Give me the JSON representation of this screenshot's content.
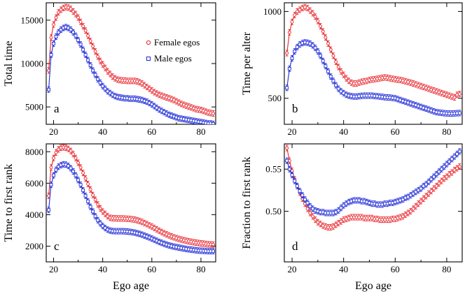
{
  "chart_data": [
    {
      "type": "line",
      "panel_label": "a",
      "ylabel": "Total time",
      "xlabel": "",
      "xlim": [
        17,
        86
      ],
      "ylim": [
        3000,
        17000
      ],
      "xticks": [
        20,
        40,
        60,
        80
      ],
      "yticks": [
        5000,
        10000,
        15000
      ],
      "xtick_labels": [
        "20",
        "40",
        "60",
        "80"
      ],
      "ytick_labels": [
        "5000",
        "10000",
        "15000"
      ],
      "legend": {
        "position": "right",
        "entries": [
          "Female egos",
          "Male egos"
        ]
      },
      "x": [
        18,
        19,
        20,
        21,
        22,
        23,
        24,
        25,
        26,
        27,
        28,
        29,
        30,
        31,
        32,
        33,
        34,
        35,
        36,
        37,
        38,
        39,
        40,
        41,
        42,
        43,
        44,
        45,
        46,
        47,
        48,
        49,
        50,
        51,
        52,
        53,
        54,
        55,
        56,
        57,
        58,
        59,
        60,
        61,
        62,
        63,
        64,
        65,
        66,
        67,
        68,
        69,
        70,
        71,
        72,
        73,
        74,
        75,
        76,
        77,
        78,
        79,
        80,
        81,
        82,
        83,
        84,
        85
      ],
      "series": [
        {
          "name": "Female egos",
          "color": "#e8242b",
          "marker": "circle",
          "values": [
            9200,
            13000,
            14500,
            15300,
            15900,
            16200,
            16400,
            16500,
            16450,
            16300,
            16000,
            15700,
            15300,
            14800,
            14300,
            13800,
            13200,
            12600,
            12000,
            11400,
            10800,
            10300,
            9900,
            9500,
            9100,
            8800,
            8500,
            8300,
            8150,
            8100,
            8050,
            8050,
            8000,
            8000,
            8000,
            8000,
            7950,
            7850,
            7700,
            7500,
            7300,
            7100,
            6900,
            6700,
            6550,
            6400,
            6300,
            6200,
            6100,
            6000,
            5900,
            5800,
            5650,
            5500,
            5350,
            5250,
            5150,
            5050,
            4950,
            4850,
            4750,
            4700,
            4650,
            4550,
            4450,
            4350,
            4300,
            4250
          ]
        },
        {
          "name": "Male egos",
          "color": "#1f2bd6",
          "marker": "square",
          "values": [
            7000,
            11000,
            12300,
            13100,
            13600,
            13900,
            14100,
            14200,
            14100,
            13900,
            13600,
            13200,
            12700,
            12200,
            11600,
            11000,
            10400,
            9800,
            9200,
            8700,
            8200,
            7800,
            7400,
            7100,
            6800,
            6600,
            6400,
            6250,
            6150,
            6100,
            6050,
            6000,
            6000,
            5950,
            5950,
            5950,
            5900,
            5850,
            5800,
            5700,
            5600,
            5450,
            5300,
            5100,
            4900,
            4700,
            4550,
            4400,
            4250,
            4100,
            4000,
            3900,
            3800,
            3700,
            3650,
            3600,
            3550,
            3500,
            3450,
            3400,
            3350,
            3300,
            3250,
            3200,
            3150,
            3100,
            3100,
            3050
          ]
        }
      ]
    },
    {
      "type": "line",
      "panel_label": "b",
      "ylabel": "Time per alter",
      "xlabel": "",
      "xlim": [
        17,
        86
      ],
      "ylim": [
        350,
        1050
      ],
      "xticks": [
        20,
        40,
        60,
        80
      ],
      "yticks": [
        500,
        1000
      ],
      "xtick_labels": [
        "20",
        "40",
        "60",
        "80"
      ],
      "ytick_labels": [
        "500",
        "1000"
      ],
      "x": [
        18,
        19,
        20,
        21,
        22,
        23,
        24,
        25,
        26,
        27,
        28,
        29,
        30,
        31,
        32,
        33,
        34,
        35,
        36,
        37,
        38,
        39,
        40,
        41,
        42,
        43,
        44,
        45,
        46,
        47,
        48,
        49,
        50,
        51,
        52,
        53,
        54,
        55,
        56,
        57,
        58,
        59,
        60,
        61,
        62,
        63,
        64,
        65,
        66,
        67,
        68,
        69,
        70,
        71,
        72,
        73,
        74,
        75,
        76,
        77,
        78,
        79,
        80,
        81,
        82,
        83,
        84,
        85
      ],
      "series": [
        {
          "name": "Female egos",
          "color": "#e8242b",
          "marker": "circle",
          "values": [
            760,
            880,
            940,
            980,
            1000,
            1010,
            1020,
            1025,
            1020,
            1005,
            990,
            970,
            945,
            915,
            885,
            850,
            815,
            780,
            745,
            710,
            680,
            655,
            635,
            615,
            600,
            590,
            585,
            585,
            590,
            595,
            598,
            600,
            605,
            608,
            610,
            612,
            615,
            618,
            620,
            618,
            615,
            612,
            610,
            607,
            605,
            602,
            598,
            594,
            590,
            585,
            580,
            575,
            570,
            565,
            560,
            555,
            550,
            545,
            540,
            535,
            530,
            525,
            520,
            515,
            510,
            505,
            520,
            525
          ]
        },
        {
          "name": "Male egos",
          "color": "#1f2bd6",
          "marker": "square",
          "values": [
            560,
            670,
            730,
            770,
            795,
            810,
            818,
            822,
            820,
            815,
            805,
            790,
            770,
            745,
            715,
            685,
            655,
            625,
            600,
            575,
            555,
            540,
            530,
            520,
            515,
            512,
            510,
            510,
            512,
            514,
            515,
            515,
            515,
            515,
            513,
            512,
            510,
            508,
            506,
            505,
            504,
            502,
            500,
            495,
            490,
            485,
            480,
            475,
            470,
            465,
            460,
            455,
            450,
            445,
            440,
            435,
            430,
            425,
            420,
            418,
            416,
            414,
            413,
            412,
            412,
            413,
            414,
            415
          ]
        }
      ]
    },
    {
      "type": "line",
      "panel_label": "c",
      "ylabel": "Time to first rank",
      "xlabel": "Ego age",
      "xlim": [
        17,
        86
      ],
      "ylim": [
        1000,
        8500
      ],
      "xticks": [
        20,
        40,
        60,
        80
      ],
      "yticks": [
        2000,
        4000,
        6000,
        8000
      ],
      "xtick_labels": [
        "20",
        "40",
        "60",
        "80"
      ],
      "ytick_labels": [
        "2000",
        "4000",
        "6000",
        "8000"
      ],
      "x": [
        18,
        19,
        20,
        21,
        22,
        23,
        24,
        25,
        26,
        27,
        28,
        29,
        30,
        31,
        32,
        33,
        34,
        35,
        36,
        37,
        38,
        39,
        40,
        41,
        42,
        43,
        44,
        45,
        46,
        47,
        48,
        49,
        50,
        51,
        52,
        53,
        54,
        55,
        56,
        57,
        58,
        59,
        60,
        61,
        62,
        63,
        64,
        65,
        66,
        67,
        68,
        69,
        70,
        71,
        72,
        73,
        74,
        75,
        76,
        77,
        78,
        79,
        80,
        81,
        82,
        83,
        84,
        85
      ],
      "series": [
        {
          "name": "Female egos",
          "color": "#e8242b",
          "marker": "circle",
          "values": [
            5200,
            7000,
            7600,
            7950,
            8150,
            8250,
            8280,
            8250,
            8180,
            8050,
            7850,
            7600,
            7300,
            7000,
            6650,
            6300,
            5950,
            5600,
            5250,
            4950,
            4650,
            4400,
            4200,
            4050,
            3900,
            3800,
            3780,
            3770,
            3760,
            3760,
            3760,
            3750,
            3740,
            3730,
            3710,
            3690,
            3650,
            3600,
            3540,
            3470,
            3400,
            3320,
            3250,
            3160,
            3070,
            2980,
            2900,
            2820,
            2750,
            2680,
            2620,
            2560,
            2510,
            2460,
            2420,
            2380,
            2340,
            2310,
            2280,
            2250,
            2220,
            2200,
            2180,
            2160,
            2140,
            2120,
            2110,
            2100
          ]
        },
        {
          "name": "Male egos",
          "color": "#1f2bd6",
          "marker": "square",
          "values": [
            4300,
            5900,
            6500,
            6850,
            7050,
            7150,
            7200,
            7180,
            7100,
            6950,
            6750,
            6500,
            6200,
            5900,
            5550,
            5200,
            4850,
            4500,
            4200,
            3900,
            3650,
            3450,
            3280,
            3150,
            3050,
            2990,
            2960,
            2950,
            2950,
            2950,
            2950,
            2940,
            2930,
            2910,
            2890,
            2860,
            2820,
            2780,
            2730,
            2670,
            2610,
            2550,
            2480,
            2410,
            2340,
            2270,
            2210,
            2150,
            2100,
            2050,
            2010,
            1970,
            1940,
            1910,
            1880,
            1850,
            1820,
            1800,
            1780,
            1760,
            1740,
            1720,
            1710,
            1700,
            1690,
            1680,
            1680,
            1680
          ]
        }
      ]
    },
    {
      "type": "line",
      "panel_label": "d",
      "ylabel": "Fraction to first rank",
      "xlabel": "Ego age",
      "xlim": [
        17,
        86
      ],
      "ylim": [
        0.44,
        0.58
      ],
      "xticks": [
        20,
        40,
        60,
        80
      ],
      "yticks": [
        0.5,
        0.55
      ],
      "xtick_labels": [
        "20",
        "40",
        "60",
        "80"
      ],
      "ytick_labels": [
        "0.50",
        "0.55"
      ],
      "x": [
        18,
        19,
        20,
        21,
        22,
        23,
        24,
        25,
        26,
        27,
        28,
        29,
        30,
        31,
        32,
        33,
        34,
        35,
        36,
        37,
        38,
        39,
        40,
        41,
        42,
        43,
        44,
        45,
        46,
        47,
        48,
        49,
        50,
        51,
        52,
        53,
        54,
        55,
        56,
        57,
        58,
        59,
        60,
        61,
        62,
        63,
        64,
        65,
        66,
        67,
        68,
        69,
        70,
        71,
        72,
        73,
        74,
        75,
        76,
        77,
        78,
        79,
        80,
        81,
        82,
        83,
        84,
        85
      ],
      "series": [
        {
          "name": "Female egos",
          "color": "#e8242b",
          "marker": "circle",
          "values": [
            0.575,
            0.56,
            0.548,
            0.538,
            0.53,
            0.522,
            0.515,
            0.509,
            0.503,
            0.498,
            0.494,
            0.49,
            0.487,
            0.485,
            0.483,
            0.482,
            0.481,
            0.481,
            0.482,
            0.484,
            0.486,
            0.488,
            0.49,
            0.491,
            0.492,
            0.493,
            0.493,
            0.493,
            0.493,
            0.493,
            0.492,
            0.492,
            0.492,
            0.492,
            0.491,
            0.491,
            0.49,
            0.49,
            0.49,
            0.49,
            0.49,
            0.491,
            0.491,
            0.492,
            0.493,
            0.494,
            0.496,
            0.498,
            0.5,
            0.503,
            0.506,
            0.509,
            0.512,
            0.515,
            0.518,
            0.521,
            0.524,
            0.527,
            0.53,
            0.533,
            0.536,
            0.539,
            0.541,
            0.544,
            0.546,
            0.549,
            0.551,
            0.553
          ]
        },
        {
          "name": "Male egos",
          "color": "#1f2bd6",
          "marker": "square",
          "values": [
            0.56,
            0.55,
            0.543,
            0.536,
            0.53,
            0.524,
            0.519,
            0.514,
            0.51,
            0.506,
            0.503,
            0.501,
            0.5,
            0.499,
            0.499,
            0.498,
            0.498,
            0.498,
            0.498,
            0.499,
            0.501,
            0.504,
            0.507,
            0.509,
            0.511,
            0.512,
            0.513,
            0.513,
            0.513,
            0.512,
            0.512,
            0.511,
            0.51,
            0.509,
            0.509,
            0.508,
            0.508,
            0.508,
            0.509,
            0.509,
            0.51,
            0.51,
            0.511,
            0.512,
            0.513,
            0.514,
            0.516,
            0.517,
            0.519,
            0.521,
            0.523,
            0.525,
            0.527,
            0.53,
            0.532,
            0.535,
            0.538,
            0.541,
            0.544,
            0.547,
            0.55,
            0.553,
            0.556,
            0.559,
            0.562,
            0.565,
            0.568,
            0.571
          ]
        }
      ]
    }
  ]
}
